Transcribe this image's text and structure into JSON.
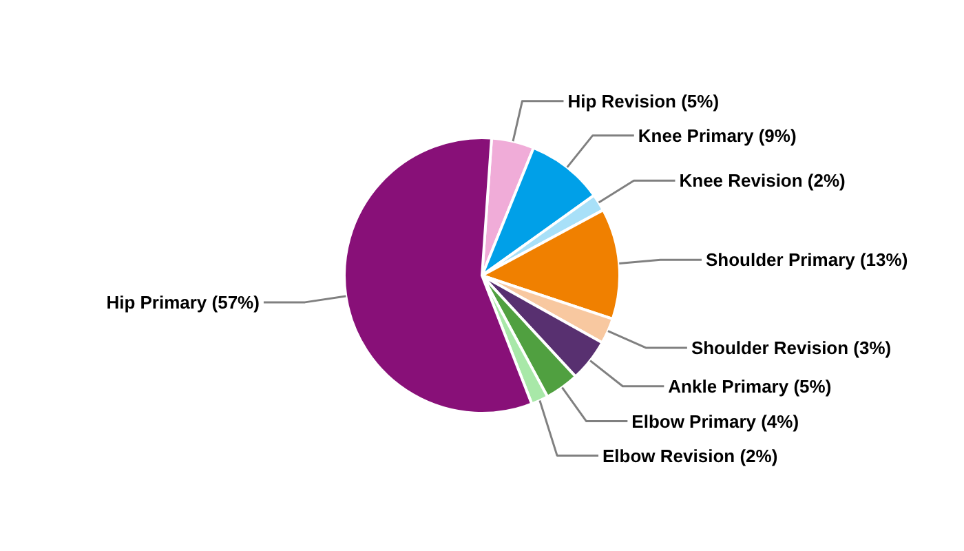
{
  "chart_data": {
    "type": "pie",
    "categories": [
      "Hip Revision",
      "Knee Primary",
      "Knee Revision",
      "Shoulder Primary",
      "Shoulder Revision",
      "Ankle Primary",
      "Elbow Primary",
      "Elbow Revision",
      "Hip Primary"
    ],
    "values": [
      5,
      9,
      2,
      13,
      3,
      5,
      4,
      2,
      57
    ],
    "value_labels": [
      "(5%)",
      "(9%)",
      "(2%)",
      "(13%)",
      "(3%)",
      "(5%)",
      "(4%)",
      "(2%)",
      "(57%)"
    ],
    "colors": [
      "#f0acd8",
      "#00a0e8",
      "#a8e0f8",
      "#f08000",
      "#f8c8a0",
      "#583070",
      "#50a040",
      "#a8e8a8",
      "#881078"
    ]
  }
}
